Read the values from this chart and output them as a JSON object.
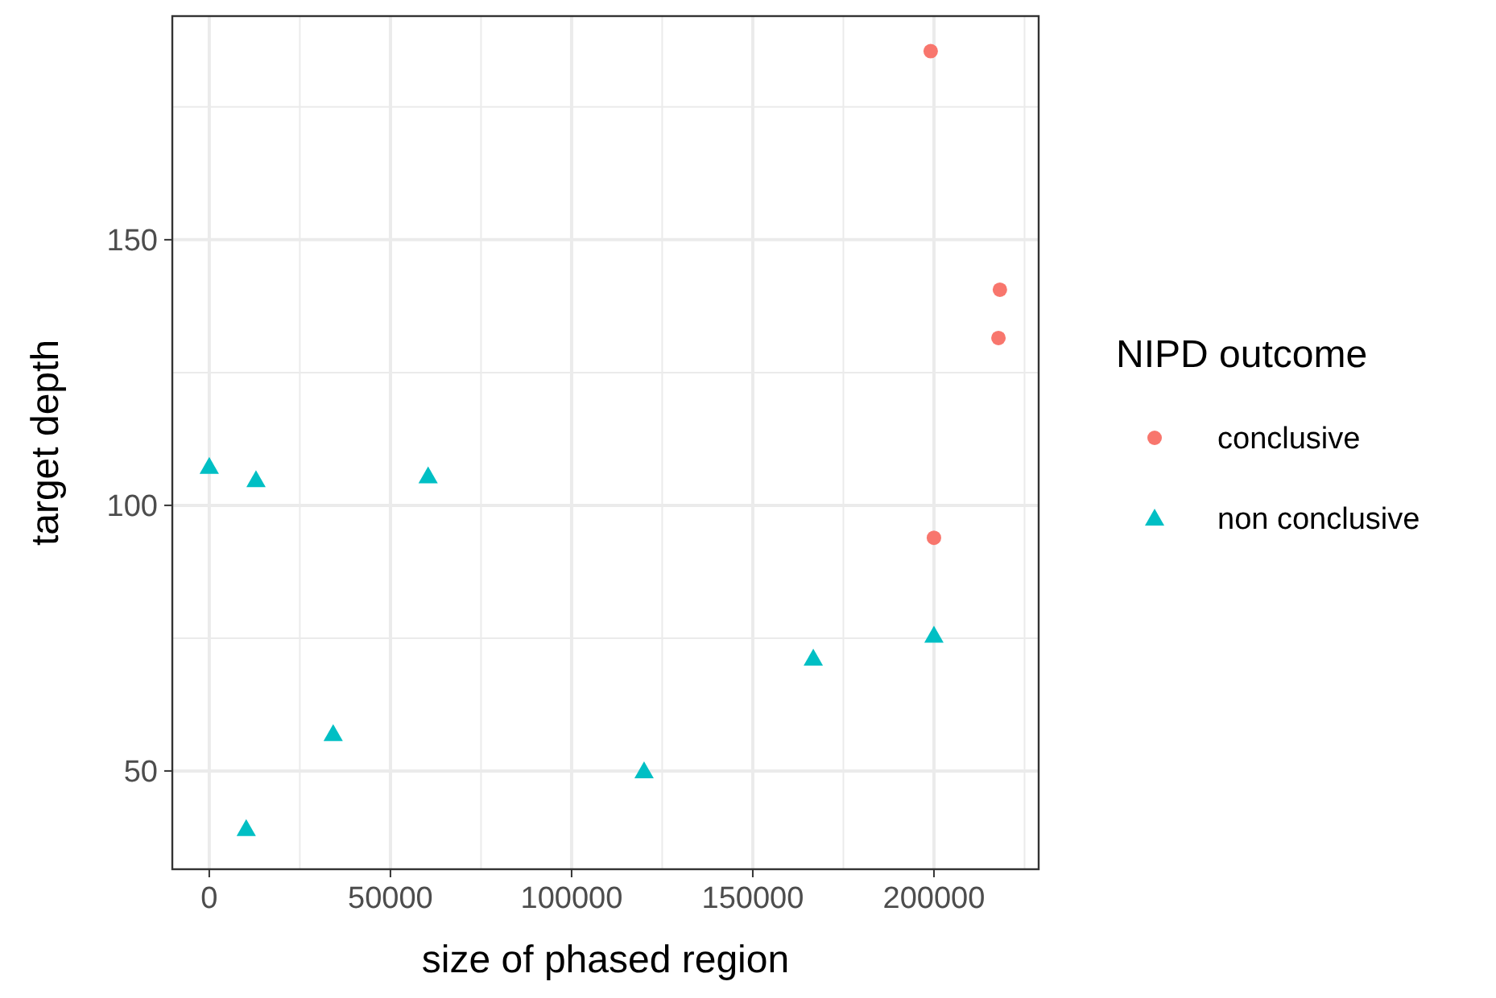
{
  "chart_data": {
    "type": "scatter",
    "xlabel": "size of phased region",
    "ylabel": "target depth",
    "legend_title": "NIPD outcome",
    "legend": "right",
    "grid": true,
    "xlim": [
      -10200,
      228900
    ],
    "ylim": [
      31.5,
      192.1
    ],
    "xticks": [
      0,
      {
        "value": 25000,
        "label": null
      },
      50000,
      {
        "value": 75000,
        "label": null
      },
      100000,
      {
        "value": 125000,
        "label": null
      },
      150000,
      {
        "value": 175000,
        "label": null
      },
      200000,
      {
        "value": 225000,
        "label": null
      }
    ],
    "yticks": [
      50,
      {
        "value": 75,
        "label": null
      },
      100,
      {
        "value": 125,
        "label": null
      },
      150,
      {
        "value": 175,
        "label": null
      }
    ],
    "series": [
      {
        "name": "conclusive",
        "color": "#f8766d",
        "marker": "circle",
        "x": [
          199100,
          218200,
          217800,
          200000
        ],
        "values": [
          185.5,
          140.6,
          131.5,
          93.9
        ]
      },
      {
        "name": "non conclusive",
        "color": "#00bfc4",
        "marker": "triangle",
        "x": [
          0,
          12900,
          60400,
          10200,
          34200,
          120000,
          166700,
          200000
        ],
        "values": [
          107.3,
          104.8,
          105.5,
          39.1,
          57.0,
          50,
          71.2,
          75.5
        ]
      }
    ]
  }
}
